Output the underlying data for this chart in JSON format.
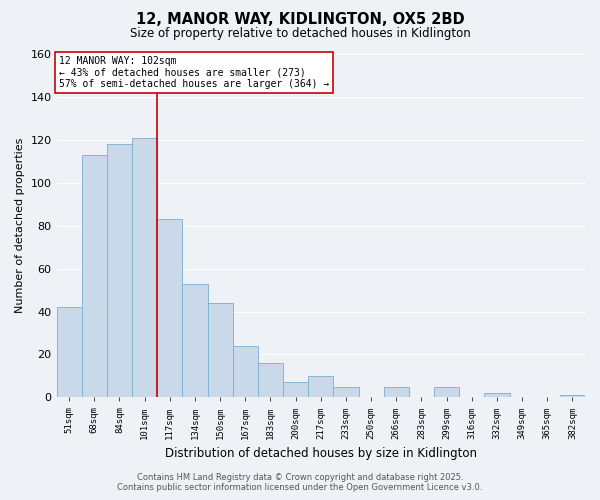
{
  "title": "12, MANOR WAY, KIDLINGTON, OX5 2BD",
  "subtitle": "Size of property relative to detached houses in Kidlington",
  "xlabel": "Distribution of detached houses by size in Kidlington",
  "ylabel": "Number of detached properties",
  "categories": [
    "51sqm",
    "68sqm",
    "84sqm",
    "101sqm",
    "117sqm",
    "134sqm",
    "150sqm",
    "167sqm",
    "183sqm",
    "200sqm",
    "217sqm",
    "233sqm",
    "250sqm",
    "266sqm",
    "283sqm",
    "299sqm",
    "316sqm",
    "332sqm",
    "349sqm",
    "365sqm",
    "382sqm"
  ],
  "values": [
    42,
    113,
    118,
    121,
    83,
    53,
    44,
    24,
    16,
    7,
    10,
    5,
    0,
    5,
    0,
    5,
    0,
    2,
    0,
    0,
    1
  ],
  "bar_color": "#c9d9ea",
  "bar_edge_color": "#7aaed0",
  "vline_index": 3,
  "vline_color": "#cc0000",
  "annotation_line1": "12 MANOR WAY: 102sqm",
  "annotation_line2": "← 43% of detached houses are smaller (273)",
  "annotation_line3": "57% of semi-detached houses are larger (364) →",
  "annotation_box_color": "#ffffff",
  "annotation_box_edge": "#cc0000",
  "ylim": [
    0,
    160
  ],
  "yticks": [
    0,
    20,
    40,
    60,
    80,
    100,
    120,
    140,
    160
  ],
  "background_color": "#eef2f7",
  "grid_color": "#ffffff",
  "footer1": "Contains HM Land Registry data © Crown copyright and database right 2025.",
  "footer2": "Contains public sector information licensed under the Open Government Licence v3.0."
}
